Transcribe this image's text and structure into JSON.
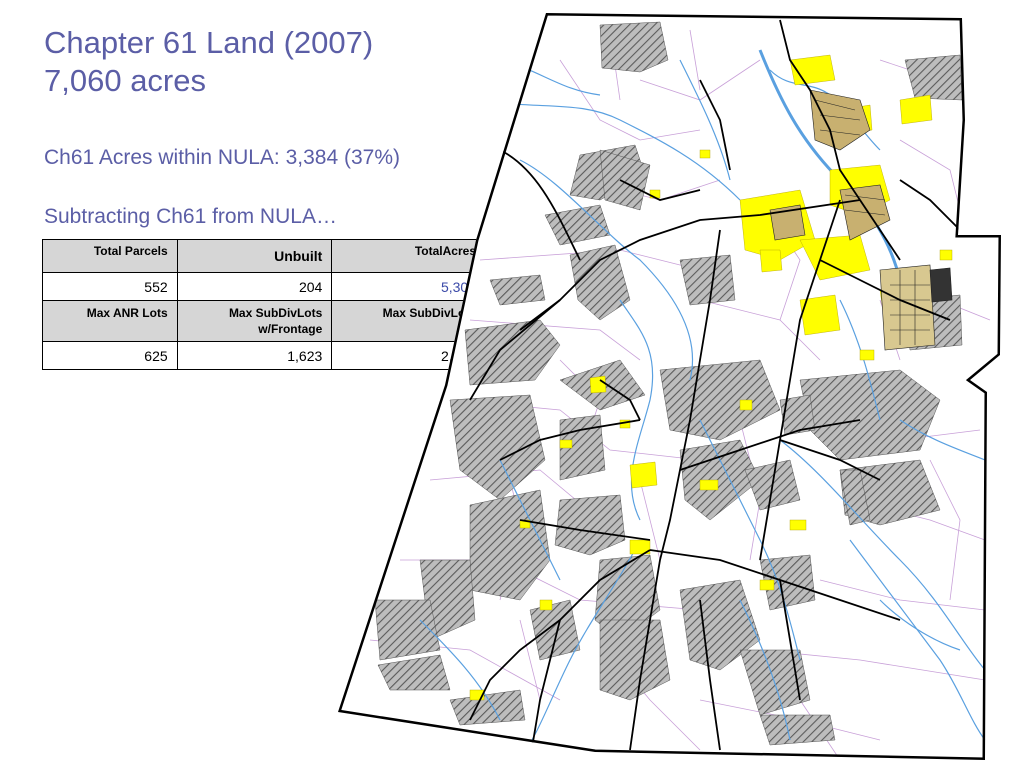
{
  "slide": {
    "title_line1": "Chapter 61 Land (2007)",
    "title_line2": "7,060 acres",
    "stat_line": "Ch61 Acres within NULA:  3,384 (37%)",
    "subtracting_line": "Subtracting Ch61 from NULA…"
  },
  "table": {
    "header1": [
      "Total Parcels",
      "Unbuilt",
      "TotalAcres"
    ],
    "values1": [
      "552",
      "204",
      "5,307"
    ],
    "header2": [
      "Max ANR Lots",
      "Max SubDivLots w/Frontage",
      "Max SubDivLots"
    ],
    "values2": [
      "625",
      "1,623",
      "2,407"
    ]
  },
  "map": {
    "colors": {
      "hatched_parcels": "#8a8a8a",
      "developed_areas": "#ffff00",
      "streams": "#5aa0e0",
      "parcel_lines": "#c8a0d8",
      "roads": "#000000",
      "boundary": "#000000"
    }
  }
}
